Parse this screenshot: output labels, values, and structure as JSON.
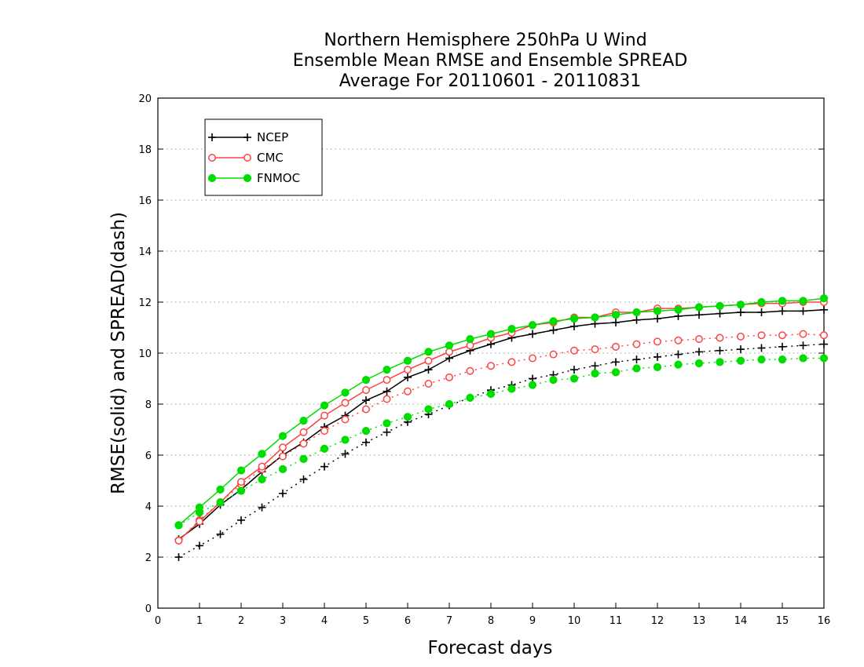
{
  "chart_data": {
    "type": "line",
    "title": [
      "Northern Hemisphere 250hPa U Wind",
      "Ensemble Mean RMSE and Ensemble SPREAD",
      "Average For 20110601 - 20110831"
    ],
    "xlabel": "Forecast days",
    "ylabel": "RMSE(solid) and SPREAD(dash)",
    "xlim": [
      0,
      16
    ],
    "ylim": [
      0,
      20
    ],
    "xticks": [
      "0",
      "1",
      "2",
      "3",
      "4",
      "5",
      "6",
      "7",
      "8",
      "9",
      "10",
      "11",
      "12",
      "13",
      "14",
      "15",
      "16"
    ],
    "yticks": [
      "0",
      "2",
      "4",
      "6",
      "8",
      "10",
      "12",
      "14",
      "16",
      "18",
      "20"
    ],
    "grid": "horizontal dotted",
    "legend_position": "top-left",
    "x": [
      0.5,
      1,
      1.5,
      2,
      2.5,
      3,
      3.5,
      4,
      4.5,
      5,
      5.5,
      6,
      6.5,
      7,
      7.5,
      8,
      8.5,
      9,
      9.5,
      10,
      10.5,
      11,
      11.5,
      12,
      12.5,
      13,
      13.5,
      14,
      14.5,
      15,
      15.5,
      16
    ],
    "series": [
      {
        "name": "NCEP",
        "color": "#000000",
        "marker": "plus",
        "rmse": [
          2.7,
          3.3,
          4.05,
          4.65,
          5.35,
          6.0,
          6.5,
          7.1,
          7.55,
          8.15,
          8.5,
          9.05,
          9.35,
          9.8,
          10.1,
          10.35,
          10.6,
          10.75,
          10.9,
          11.05,
          11.15,
          11.2,
          11.3,
          11.35,
          11.45,
          11.5,
          11.55,
          11.6,
          11.6,
          11.65,
          11.65,
          11.7
        ],
        "spread": [
          2.0,
          2.45,
          2.9,
          3.45,
          3.95,
          4.5,
          5.05,
          5.55,
          6.05,
          6.5,
          6.9,
          7.3,
          7.6,
          7.95,
          8.25,
          8.55,
          8.75,
          9.0,
          9.15,
          9.35,
          9.5,
          9.65,
          9.75,
          9.85,
          9.95,
          10.05,
          10.1,
          10.15,
          10.2,
          10.25,
          10.3,
          10.35
        ]
      },
      {
        "name": "CMC",
        "color": "#ff4040",
        "marker": "open-circle",
        "rmse": [
          2.65,
          3.4,
          4.15,
          4.95,
          5.55,
          6.3,
          6.9,
          7.55,
          8.05,
          8.55,
          8.95,
          9.35,
          9.7,
          10.05,
          10.3,
          10.6,
          10.8,
          11.1,
          11.2,
          11.4,
          11.4,
          11.6,
          11.6,
          11.75,
          11.75,
          11.8,
          11.85,
          11.9,
          11.95,
          11.95,
          12.0,
          12.0
        ],
        "spread": [
          2.65,
          3.45,
          4.15,
          4.85,
          5.45,
          5.95,
          6.45,
          6.95,
          7.4,
          7.8,
          8.2,
          8.5,
          8.8,
          9.05,
          9.3,
          9.5,
          9.65,
          9.8,
          9.95,
          10.1,
          10.15,
          10.25,
          10.35,
          10.45,
          10.5,
          10.55,
          10.6,
          10.65,
          10.7,
          10.7,
          10.75,
          10.7
        ]
      },
      {
        "name": "FNMOC",
        "color": "#00dd00",
        "marker": "filled-circle",
        "rmse": [
          3.25,
          3.95,
          4.65,
          5.4,
          6.05,
          6.75,
          7.35,
          7.95,
          8.45,
          8.95,
          9.35,
          9.7,
          10.05,
          10.3,
          10.55,
          10.75,
          10.95,
          11.1,
          11.25,
          11.35,
          11.4,
          11.5,
          11.6,
          11.65,
          11.7,
          11.8,
          11.85,
          11.9,
          12.0,
          12.05,
          12.05,
          12.15
        ],
        "spread": [
          3.25,
          3.75,
          4.15,
          4.6,
          5.05,
          5.45,
          5.85,
          6.25,
          6.6,
          6.95,
          7.25,
          7.5,
          7.8,
          8.0,
          8.25,
          8.4,
          8.6,
          8.75,
          8.95,
          9.0,
          9.2,
          9.25,
          9.4,
          9.45,
          9.55,
          9.6,
          9.65,
          9.7,
          9.75,
          9.75,
          9.8,
          9.8
        ]
      }
    ]
  }
}
